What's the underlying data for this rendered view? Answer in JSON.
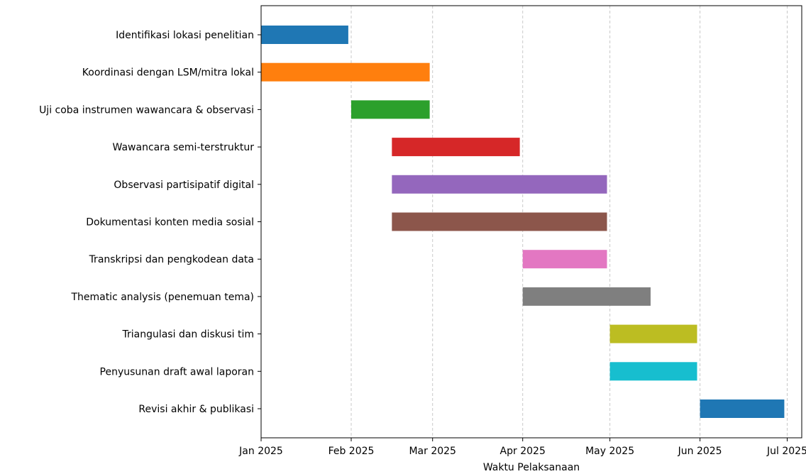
{
  "chart_data": {
    "type": "gantt",
    "title": "",
    "xlabel": "Waktu Pelaksanaan",
    "ylabel": "",
    "xlim": [
      "2025-01-01",
      "2025-07-06"
    ],
    "grid": "x-dashed",
    "x_ticks": [
      {
        "date": "2025-01-01",
        "label": "Jan 2025"
      },
      {
        "date": "2025-02-01",
        "label": "Feb 2025"
      },
      {
        "date": "2025-03-01",
        "label": "Mar 2025"
      },
      {
        "date": "2025-04-01",
        "label": "Apr 2025"
      },
      {
        "date": "2025-05-01",
        "label": "May 2025"
      },
      {
        "date": "2025-06-01",
        "label": "Jun 2025"
      },
      {
        "date": "2025-07-01",
        "label": "Jul 2025"
      }
    ],
    "tasks": [
      {
        "name": "Identifikasi lokasi penelitian",
        "start": "2025-01-01",
        "end": "2025-01-31",
        "color": "#1f77b4"
      },
      {
        "name": "Koordinasi dengan LSM/mitra lokal",
        "start": "2025-01-01",
        "end": "2025-02-28",
        "color": "#ff7f0e"
      },
      {
        "name": "Uji coba instrumen wawancara & observasi",
        "start": "2025-02-01",
        "end": "2025-02-28",
        "color": "#2ca02c"
      },
      {
        "name": "Wawancara semi-terstruktur",
        "start": "2025-02-15",
        "end": "2025-03-31",
        "color": "#d62728"
      },
      {
        "name": "Observasi partisipatif digital",
        "start": "2025-02-15",
        "end": "2025-04-30",
        "color": "#9467bd"
      },
      {
        "name": "Dokumentasi konten media sosial",
        "start": "2025-02-15",
        "end": "2025-04-30",
        "color": "#8c564b"
      },
      {
        "name": "Transkripsi dan pengkodean data",
        "start": "2025-04-01",
        "end": "2025-04-30",
        "color": "#e377c2"
      },
      {
        "name": "Thematic analysis (penemuan tema)",
        "start": "2025-04-01",
        "end": "2025-05-15",
        "color": "#7f7f7f"
      },
      {
        "name": "Triangulasi dan diskusi tim",
        "start": "2025-05-01",
        "end": "2025-05-31",
        "color": "#bcbd22"
      },
      {
        "name": "Penyusunan draft awal laporan",
        "start": "2025-05-01",
        "end": "2025-05-31",
        "color": "#17becf"
      },
      {
        "name": "Revisi akhir & publikasi",
        "start": "2025-06-01",
        "end": "2025-06-30",
        "color": "#1f77b4"
      }
    ]
  }
}
